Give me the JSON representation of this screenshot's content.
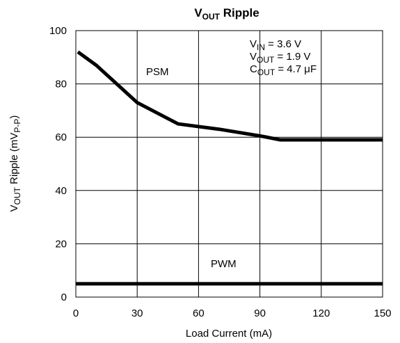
{
  "chart_data": {
    "type": "line",
    "title": {
      "main": "V",
      "sub": "OUT",
      "rest": " Ripple"
    },
    "xlabel": "Load Current (mA)",
    "ylabel": {
      "main": "V",
      "sub": "OUT",
      "mid": " Ripple (mV",
      "sub2": "P-P",
      "end": ")"
    },
    "xlim": [
      0,
      150
    ],
    "ylim": [
      0,
      100
    ],
    "xticks": [
      "0",
      "30",
      "60",
      "90",
      "120",
      "150"
    ],
    "yticks": [
      "0",
      "20",
      "40",
      "60",
      "80",
      "100"
    ],
    "xtick_values": [
      0,
      30,
      60,
      90,
      120,
      150
    ],
    "ytick_values": [
      0,
      20,
      40,
      60,
      80,
      100
    ],
    "grid": true,
    "series": [
      {
        "name": "PSM",
        "x": [
          1,
          10,
          30,
          50,
          70,
          90,
          100,
          150
        ],
        "y": [
          92,
          87,
          73,
          65,
          63,
          60.5,
          59,
          59
        ]
      },
      {
        "name": "PWM",
        "x": [
          0,
          150
        ],
        "y": [
          5,
          5
        ]
      }
    ],
    "annotations": {
      "vin": {
        "main": "V",
        "sub": "IN",
        "rest": " = 3.6 V"
      },
      "vout": {
        "main": "V",
        "sub": "OUT",
        "rest": " = 1.9 V"
      },
      "cout": {
        "main": "C",
        "sub": "OUT",
        "rest": " = 4.7 μF"
      }
    }
  }
}
